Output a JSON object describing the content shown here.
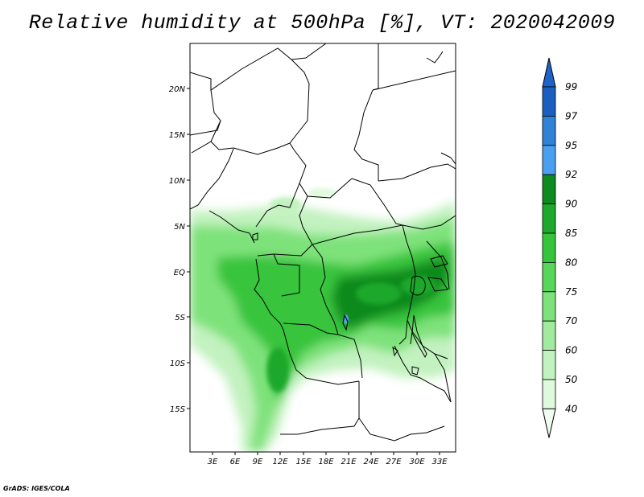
{
  "title": "Relative humidity at 500hPa [%], VT: 2020042009",
  "footer": "GrADS: IGES/COLA",
  "map": {
    "lat_labels": [
      "20N",
      "15N",
      "10N",
      "5N",
      "EQ",
      "5S",
      "10S",
      "15S"
    ],
    "lon_labels": [
      "3E",
      "6E",
      "9E",
      "12E",
      "15E",
      "18E",
      "21E",
      "24E",
      "27E",
      "30E",
      "33E"
    ]
  },
  "colorbar": {
    "levels": [
      "99",
      "97",
      "95",
      "92",
      "90",
      "85",
      "80",
      "75",
      "70",
      "60",
      "50",
      "40"
    ],
    "colors": [
      "#1a5fbf",
      "#2f82d6",
      "#4aa0ee",
      "#0f8a1f",
      "#1ea82c",
      "#37c43d",
      "#58d65a",
      "#7ee27a",
      "#a2eb9e",
      "#c2f2bf",
      "#dff9dc",
      "#f1fdf0"
    ],
    "top_color": "#1e63c8"
  }
}
